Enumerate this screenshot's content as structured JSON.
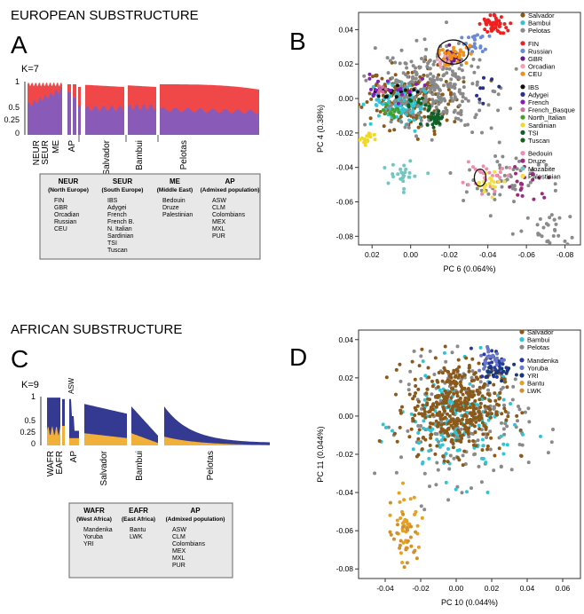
{
  "sections": {
    "european": "EUROPEAN SUBSTRUCTURE",
    "african": "AFRICAN SUBSTRUCTURE"
  },
  "panels": {
    "a": "A",
    "b": "B",
    "c": "C",
    "d": "D"
  },
  "colors": {
    "red": "#f04848",
    "purple": "#8a5ab8",
    "navy": "#343a92",
    "gold": "#f0b03a",
    "salvador": "#8b5a1a",
    "bambui": "#33c4d4",
    "pelotas": "#8a8a8a",
    "fin": "#f02020",
    "russian": "#6a8ad8",
    "gbr": "#6a1a8a",
    "orcadian": "#f0a0b0",
    "ceu": "#f09018",
    "ibs": "#101010",
    "adygei": "#28308a",
    "french": "#8a18c0",
    "french_basque": "#d070a0",
    "north_italian": "#40a028",
    "sardinian": "#f0d828",
    "tsi": "#106028",
    "tuscan": "#186018",
    "bedouin": "#f08cb0",
    "druze": "#a02880",
    "mozabite": "#70c8c0",
    "palestinian": "#f0e040",
    "mandenka": "#2838a0",
    "yoruba": "#6878c8",
    "yri": "#183878",
    "bantu": "#e8a020",
    "lwk": "#d09030"
  },
  "admixture_a": {
    "k_label": "K=7",
    "y_ticks": [
      "1",
      "0.5",
      "0.25",
      "0"
    ],
    "group_labels": [
      "NEUR",
      "SEUR",
      "ME",
      "AP"
    ],
    "cohort_labels": [
      "Salvador",
      "Bambui",
      "Pelotas"
    ],
    "legend_columns": [
      {
        "code": "NEUR",
        "name": "(North Europe)",
        "items": [
          "FIN",
          "GBR",
          "Orcadian",
          "Russian",
          "CEU"
        ]
      },
      {
        "code": "SEUR",
        "name": "(South Europe)",
        "items": [
          "IBS",
          "Adygei",
          "French",
          "French B.",
          "N. Italian",
          "Sardinian",
          "TSI",
          "Tuscan"
        ]
      },
      {
        "code": "ME",
        "name": "(Middle East)",
        "items": [
          "Bedouin",
          "Druze",
          "Palestinian"
        ]
      },
      {
        "code": "AP",
        "name": "(Admixed population)",
        "items": [
          "ASW",
          "CLM",
          "Colombians",
          "MEX",
          "MXL",
          "PUR"
        ]
      }
    ]
  },
  "admixture_c": {
    "k_label": "K=9",
    "asw_label": "ASW",
    "y_ticks": [
      "1",
      "0.5",
      "0.25",
      "0"
    ],
    "group_labels": [
      "WAFR",
      "EAFR",
      "AP"
    ],
    "cohort_labels": [
      "Salvador",
      "Bambui",
      "Pelotas"
    ],
    "legend_columns": [
      {
        "code": "WAFR",
        "name": "(West Africa)",
        "items": [
          "Mandenka",
          "Yoruba",
          "YRI"
        ]
      },
      {
        "code": "EAFR",
        "name": "(East Africa)",
        "items": [
          "Bantu",
          "LWK"
        ]
      },
      {
        "code": "AP",
        "name": "(Admixed population)",
        "items": [
          "ASW",
          "CLM",
          "Colombians",
          "MEX",
          "MXL",
          "PUR"
        ]
      }
    ]
  },
  "chart_data": [
    {
      "type": "scatter",
      "panel": "B",
      "xlabel": "PC 6  (0.064%)",
      "ylabel": "PC 4  (0.38%)",
      "x_ticks": [
        "0.02",
        "0.00",
        "-0.02",
        "-0.04",
        "-0.06",
        "-0.08"
      ],
      "y_ticks": [
        "0.04",
        "0.02",
        "0.00",
        "-0.02",
        "-0.04",
        "-0.06",
        "-0.08"
      ],
      "xlim": [
        0.027,
        -0.088
      ],
      "ylim": [
        -0.085,
        0.05
      ],
      "x_reversed": true,
      "legend_groups": [
        [
          "Salvador",
          "Bambui",
          "Pelotas"
        ],
        [
          "FIN",
          "Russian",
          "GBR",
          "Orcadian",
          "CEU"
        ],
        [
          "IBS",
          "Adygei",
          "French",
          "French_Basque",
          "North_Italian",
          "Sardinian",
          "TSI",
          "Tuscan"
        ],
        [
          "Bedouin",
          "Druze",
          "Mozabite",
          "Palestinian"
        ]
      ],
      "clusters": [
        {
          "series": "Salvador",
          "cx": 0.0,
          "cy": 0.0,
          "sx": 0.012,
          "sy": 0.009,
          "n": 200
        },
        {
          "series": "Bambui",
          "cx": 0.005,
          "cy": -0.002,
          "sx": 0.007,
          "sy": 0.005,
          "n": 120
        },
        {
          "series": "Pelotas",
          "cx": -0.012,
          "cy": 0.005,
          "sx": 0.015,
          "sy": 0.012,
          "n": 260
        },
        {
          "series": "Pelotas",
          "cx": -0.05,
          "cy": -0.05,
          "sx": 0.012,
          "sy": 0.01,
          "n": 50
        },
        {
          "series": "Pelotas",
          "cx": -0.07,
          "cy": -0.075,
          "sx": 0.008,
          "sy": 0.006,
          "n": 30
        },
        {
          "series": "FIN",
          "cx": -0.043,
          "cy": 0.043,
          "sx": 0.003,
          "sy": 0.003,
          "n": 50
        },
        {
          "series": "Russian",
          "cx": -0.033,
          "cy": 0.033,
          "sx": 0.003,
          "sy": 0.003,
          "n": 25
        },
        {
          "series": "GBR",
          "cx": -0.022,
          "cy": 0.024,
          "sx": 0.003,
          "sy": 0.003,
          "n": 20
        },
        {
          "series": "Orcadian",
          "cx": -0.018,
          "cy": 0.022,
          "sx": 0.002,
          "sy": 0.002,
          "n": 12
        },
        {
          "series": "CEU",
          "cx": -0.024,
          "cy": 0.025,
          "sx": 0.004,
          "sy": 0.003,
          "n": 30
        },
        {
          "series": "IBS",
          "cx": 0.008,
          "cy": 0.004,
          "sx": 0.006,
          "sy": 0.002,
          "n": 18
        },
        {
          "series": "Adygei",
          "cx": -0.04,
          "cy": 0.005,
          "sx": 0.003,
          "sy": 0.005,
          "n": 8
        },
        {
          "series": "French",
          "cx": 0.01,
          "cy": 0.006,
          "sx": 0.008,
          "sy": 0.004,
          "n": 20
        },
        {
          "series": "French_Basque",
          "cx": 0.015,
          "cy": 0.005,
          "sx": 0.003,
          "sy": 0.002,
          "n": 10
        },
        {
          "series": "North_Italian",
          "cx": 0.01,
          "cy": -0.008,
          "sx": 0.003,
          "sy": 0.002,
          "n": 12
        },
        {
          "series": "Sardinian",
          "cx": 0.023,
          "cy": -0.024,
          "sx": 0.002,
          "sy": 0.002,
          "n": 15
        },
        {
          "series": "TSI",
          "cx": -0.012,
          "cy": -0.012,
          "sx": 0.003,
          "sy": 0.003,
          "n": 30
        },
        {
          "series": "Tuscan",
          "cx": -0.003,
          "cy": -0.002,
          "sx": 0.003,
          "sy": 0.002,
          "n": 10
        },
        {
          "series": "Bedouin",
          "cx": -0.04,
          "cy": -0.045,
          "sx": 0.006,
          "sy": 0.004,
          "n": 25
        },
        {
          "series": "Druze",
          "cx": -0.06,
          "cy": -0.048,
          "sx": 0.006,
          "sy": 0.005,
          "n": 20
        },
        {
          "series": "Mozabite",
          "cx": 0.003,
          "cy": -0.045,
          "sx": 0.004,
          "sy": 0.004,
          "n": 25
        },
        {
          "series": "Palestinian",
          "cx": -0.04,
          "cy": -0.048,
          "sx": 0.005,
          "sy": 0.003,
          "n": 20
        }
      ],
      "circles": [
        {
          "cx": -0.022,
          "cy": 0.027,
          "rx": 0.008,
          "ry": 0.007
        },
        {
          "cx": -0.036,
          "cy": -0.046,
          "rx": 0.003,
          "ry": 0.005
        }
      ]
    },
    {
      "type": "scatter",
      "panel": "D",
      "xlabel": "PC 10  (0.044%)",
      "ylabel": "PC 11  (0.044%)",
      "x_ticks": [
        "-0.04",
        "-0.02",
        "0.00",
        "0.02",
        "0.04",
        "0.06"
      ],
      "y_ticks": [
        "0.04",
        "0.02",
        "0.00",
        "-0.02",
        "-0.04",
        "-0.06",
        "-0.08"
      ],
      "xlim": [
        -0.055,
        0.07
      ],
      "ylim": [
        -0.085,
        0.045
      ],
      "legend_groups": [
        [
          "Salvador",
          "Bambui",
          "Pelotas"
        ],
        [
          "Mandenka",
          "Yoruba",
          "YRI",
          "Bantu",
          "LWK"
        ]
      ],
      "clusters": [
        {
          "series": "Pelotas",
          "cx": 0.005,
          "cy": -0.002,
          "sx": 0.018,
          "sy": 0.016,
          "n": 200
        },
        {
          "series": "Bambui",
          "cx": 0.0,
          "cy": -0.005,
          "sx": 0.016,
          "sy": 0.014,
          "n": 160
        },
        {
          "series": "Salvador",
          "cx": 0.0,
          "cy": 0.005,
          "sx": 0.013,
          "sy": 0.012,
          "n": 420
        },
        {
          "series": "Mandenka",
          "cx": 0.022,
          "cy": 0.027,
          "sx": 0.004,
          "sy": 0.004,
          "n": 30
        },
        {
          "series": "Yoruba",
          "cx": 0.02,
          "cy": 0.03,
          "sx": 0.004,
          "sy": 0.004,
          "n": 25
        },
        {
          "series": "YRI",
          "cx": 0.023,
          "cy": 0.024,
          "sx": 0.004,
          "sy": 0.003,
          "n": 20
        },
        {
          "series": "Bantu",
          "cx": -0.028,
          "cy": -0.055,
          "sx": 0.004,
          "sy": 0.008,
          "n": 35
        },
        {
          "series": "LWK",
          "cx": -0.03,
          "cy": -0.065,
          "sx": 0.005,
          "sy": 0.009,
          "n": 25
        }
      ]
    }
  ]
}
